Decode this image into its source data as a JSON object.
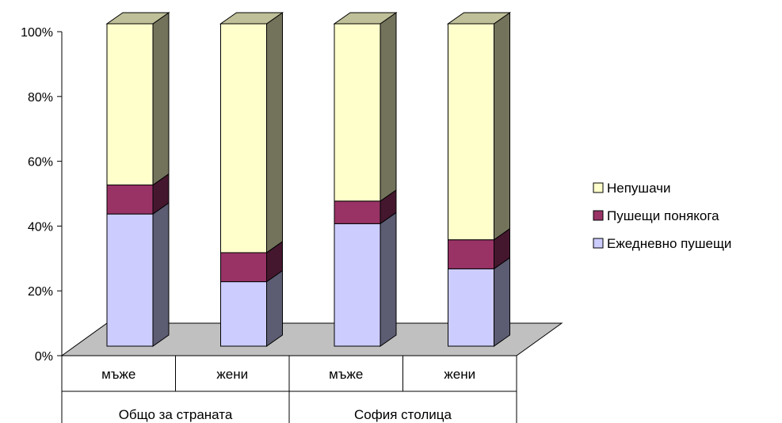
{
  "chart_data": {
    "type": "bar",
    "stacked": true,
    "percent_stacked": true,
    "three_d": true,
    "categories": [
      "мъже",
      "жени",
      "мъже",
      "жени"
    ],
    "groups": [
      {
        "label": "Общо за страната",
        "categories": [
          0,
          1
        ]
      },
      {
        "label": "София столица",
        "categories": [
          2,
          3
        ]
      }
    ],
    "series": [
      {
        "name": "Ежедневно пушещи",
        "values": [
          41,
          20,
          38,
          24
        ],
        "color": "#ccccff"
      },
      {
        "name": "Пушещи понякога",
        "values": [
          9,
          9,
          7,
          9
        ],
        "color": "#993366"
      },
      {
        "name": "Непушачи",
        "values": [
          50,
          71,
          55,
          67
        ],
        "color": "#ffffcc"
      }
    ],
    "yticks": [
      "0%",
      "20%",
      "40%",
      "60%",
      "80%",
      "100%"
    ],
    "ylim": [
      0,
      100
    ],
    "legend_position": "right",
    "floor_color": "#c0c0c0"
  }
}
